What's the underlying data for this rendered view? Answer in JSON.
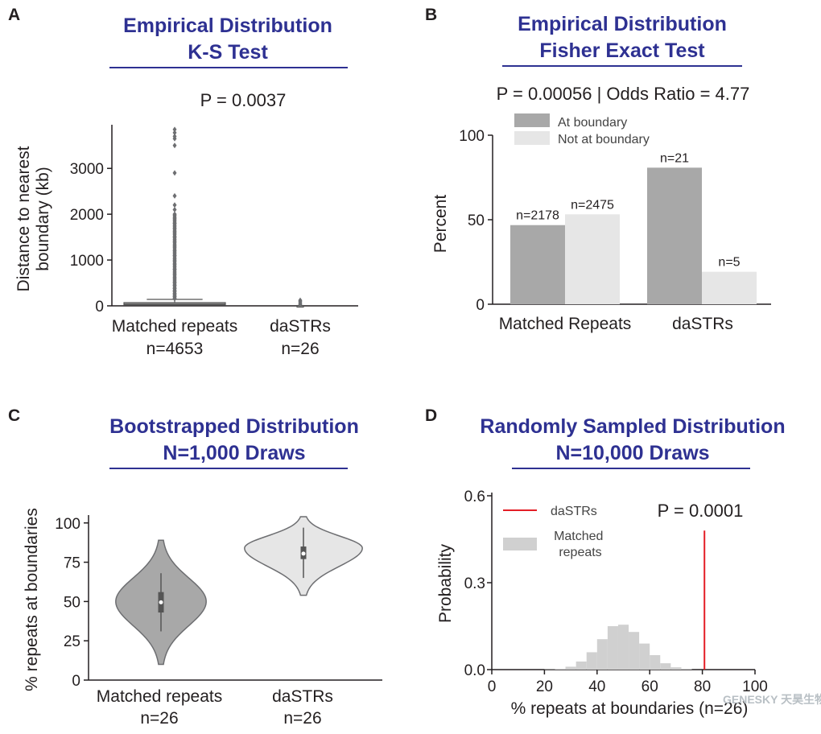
{
  "colors": {
    "title": "#2e3192",
    "dark_gray": "#a8a8a8",
    "light_gray": "#e6e6e6",
    "hist_gray": "#d0d0d0",
    "red": "#e41e26",
    "axis": "#231f20"
  },
  "watermark": "GENESKY 天昊生物",
  "chart_data": [
    {
      "panel": "A",
      "type": "box",
      "title_lines": [
        "Empirical Distribution",
        "K-S Test"
      ],
      "annotation": "P =  0.0037",
      "ylabel_lines": [
        "Distance to nearest",
        "boundary (kb)"
      ],
      "xlabel": "",
      "ylim": [
        0,
        3900
      ],
      "yticks": [
        0,
        1000,
        2000,
        3000
      ],
      "categories": [
        "Matched repeats",
        "daSTRs"
      ],
      "category_n": [
        "n=4653",
        "n=26"
      ],
      "boxes": [
        {
          "q1": 15,
          "median": 35,
          "q3": 70,
          "whisker_high": 140,
          "outliers": [
            170,
            210,
            260,
            320,
            380,
            450,
            520,
            600,
            700,
            800,
            900,
            1000,
            1100,
            1200,
            1300,
            1400,
            1500,
            1600,
            1700,
            1800,
            1900,
            2000,
            2100,
            2200,
            2400,
            2900,
            3500,
            3650,
            3700,
            3780,
            3850
          ]
        },
        {
          "q1": 2,
          "median": 4,
          "q3": 8,
          "whisker_high": 20,
          "outliers": [
            40,
            70,
            100,
            120
          ]
        }
      ]
    },
    {
      "panel": "B",
      "type": "bar",
      "title_lines": [
        "Empirical Distribution",
        "Fisher Exact Test"
      ],
      "annotation": "P =  0.00056 | Odds Ratio = 4.77",
      "ylabel": "Percent",
      "ylim": [
        0,
        100
      ],
      "yticks": [
        0,
        50,
        100
      ],
      "categories": [
        "Matched Repeats",
        "daSTRs"
      ],
      "legend_position": "top-left",
      "series": [
        {
          "name": "At boundary",
          "values": [
            46.8,
            80.8
          ],
          "labels": [
            "n=2178",
            "n=21"
          ]
        },
        {
          "name": "Not at boundary",
          "values": [
            53.2,
            19.2
          ],
          "labels": [
            "n=2475",
            "n=5"
          ]
        }
      ]
    },
    {
      "panel": "C",
      "type": "violin",
      "title_lines": [
        "Bootstrapped Distribution",
        "N=1,000 Draws"
      ],
      "ylabel": "% repeats at boundaries",
      "ylim": [
        0,
        105
      ],
      "yticks": [
        0,
        25,
        50,
        75,
        100
      ],
      "categories": [
        "Matched repeats",
        "daSTRs"
      ],
      "category_n": [
        "n=26",
        "n=26"
      ],
      "violins": [
        {
          "min": 10,
          "max": 89,
          "q1": 43,
          "median": 49.5,
          "q3": 56,
          "mode": 50
        },
        {
          "min": 54,
          "max": 104,
          "q1": 77,
          "median": 80.5,
          "q3": 85,
          "mode": 84
        }
      ]
    },
    {
      "panel": "D",
      "type": "histogram",
      "title_lines": [
        "Randomly Sampled Distribution",
        "N=10,000 Draws"
      ],
      "annotation": "P =  0.0001",
      "xlabel": "% repeats at boundaries (n=26)",
      "ylabel": "Probability",
      "xlim": [
        0,
        100
      ],
      "ylim": [
        0,
        0.6
      ],
      "xticks": [
        0,
        20,
        40,
        60,
        80,
        100
      ],
      "yticks": [
        0.0,
        0.3,
        0.6
      ],
      "legend_position": "top-left",
      "series": [
        {
          "name": "daSTRs",
          "vline_x": 80.8
        },
        {
          "name": "Matched repeats",
          "bins": [
            [
              0,
              4,
              0.0
            ],
            [
              4,
              8,
              0.0
            ],
            [
              8,
              12,
              0.0
            ],
            [
              12,
              16,
              0.0
            ],
            [
              16,
              20,
              0.0
            ],
            [
              20,
              24,
              0.001
            ],
            [
              24,
              28,
              0.003
            ],
            [
              28,
              32,
              0.01
            ],
            [
              32,
              36,
              0.028
            ],
            [
              36,
              40,
              0.06
            ],
            [
              40,
              44,
              0.105
            ],
            [
              44,
              48,
              0.15
            ],
            [
              48,
              52,
              0.155
            ],
            [
              52,
              56,
              0.13
            ],
            [
              56,
              60,
              0.09
            ],
            [
              60,
              64,
              0.05
            ],
            [
              64,
              68,
              0.022
            ],
            [
              68,
              72,
              0.008
            ],
            [
              72,
              76,
              0.002
            ],
            [
              76,
              80,
              0.0
            ],
            [
              80,
              84,
              0.0
            ]
          ]
        }
      ]
    }
  ]
}
